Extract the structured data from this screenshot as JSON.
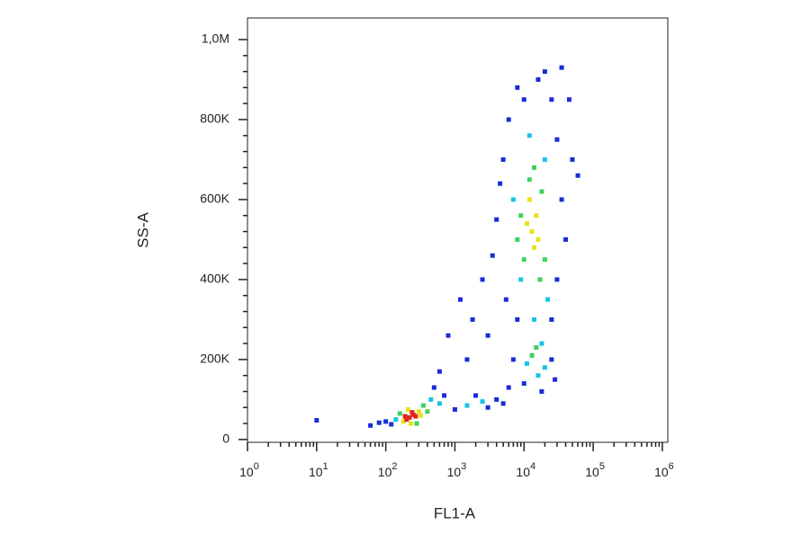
{
  "chart_data": {
    "type": "scatter",
    "x_label": "FL1-A",
    "y_label": "SS-A",
    "xscale": "log",
    "xlim": [
      1,
      1200000
    ],
    "ylim": [
      -7000,
      1054000
    ],
    "xticks": [
      {
        "value": 1,
        "label": "10",
        "sup": "0"
      },
      {
        "value": 10,
        "label": "10",
        "sup": "1"
      },
      {
        "value": 100,
        "label": "10",
        "sup": "2"
      },
      {
        "value": 1000,
        "label": "10",
        "sup": "3"
      },
      {
        "value": 10000,
        "label": "10",
        "sup": "4"
      },
      {
        "value": 100000,
        "label": "10",
        "sup": "5"
      },
      {
        "value": 1000000,
        "label": "10",
        "sup": "6"
      }
    ],
    "xminorticks": [
      2,
      3,
      4,
      5,
      6,
      7,
      8,
      9,
      20,
      30,
      40,
      50,
      60,
      70,
      80,
      90,
      200,
      300,
      400,
      500,
      600,
      700,
      800,
      900,
      2000,
      3000,
      4000,
      5000,
      6000,
      7000,
      8000,
      9000,
      20000,
      30000,
      40000,
      50000,
      60000,
      70000,
      80000,
      90000,
      200000,
      300000,
      400000,
      500000,
      600000,
      700000,
      800000,
      900000
    ],
    "yticks": [
      {
        "value": 0,
        "label": "0"
      },
      {
        "value": 200000,
        "label": "200K"
      },
      {
        "value": 400000,
        "label": "400K"
      },
      {
        "value": 600000,
        "label": "600K"
      },
      {
        "value": 800000,
        "label": "800K"
      },
      {
        "value": 1000000,
        "label": "1,0M"
      }
    ],
    "yminorticks": [
      40000,
      80000,
      120000,
      160000,
      240000,
      280000,
      320000,
      360000,
      440000,
      480000,
      520000,
      560000,
      640000,
      680000,
      720000,
      760000,
      840000,
      880000,
      920000,
      960000
    ],
    "series": [
      {
        "color": "#1a2cd8",
        "x": [
          100,
          120,
          80,
          500,
          700,
          1000,
          2000,
          3000,
          4000,
          5000,
          6000,
          5000,
          4000,
          6000,
          10000,
          16000,
          20000,
          25000,
          30000,
          35000,
          40000,
          30000,
          25000,
          8000,
          7000,
          25000,
          28000,
          10000,
          18000,
          3500,
          2500,
          1200,
          1500,
          800,
          10,
          60,
          4500,
          8000,
          35000,
          45000,
          50000,
          60000,
          3000,
          600,
          1800,
          5500
        ],
        "values": [
          45000,
          38000,
          42000,
          130000,
          110000,
          75000,
          110000,
          80000,
          100000,
          90000,
          130000,
          700000,
          550000,
          800000,
          850000,
          900000,
          920000,
          850000,
          750000,
          600000,
          500000,
          400000,
          300000,
          300000,
          200000,
          200000,
          150000,
          140000,
          120000,
          460000,
          400000,
          350000,
          200000,
          260000,
          48000,
          35000,
          640000,
          880000,
          930000,
          850000,
          700000,
          660000,
          260000,
          170000,
          300000,
          350000
        ]
      },
      {
        "color": "#19c3e6",
        "x": [
          450,
          140,
          600,
          1500,
          2500,
          20000,
          7000,
          9000,
          22000,
          14000,
          12000,
          18000,
          11000,
          20000,
          16000
        ],
        "values": [
          100000,
          50000,
          90000,
          85000,
          95000,
          700000,
          600000,
          400000,
          350000,
          300000,
          760000,
          240000,
          190000,
          180000,
          160000
        ]
      },
      {
        "color": "#3fd25a",
        "x": [
          350,
          160,
          280,
          400,
          9000,
          18000,
          12000,
          20000,
          10000,
          14000,
          17000,
          8000,
          15000,
          13000
        ],
        "values": [
          85000,
          65000,
          40000,
          70000,
          560000,
          620000,
          650000,
          450000,
          450000,
          680000,
          400000,
          500000,
          230000,
          210000
        ]
      },
      {
        "color": "#e6e21c",
        "x": [
          300,
          180,
          230,
          320,
          210,
          13000,
          15000,
          12000,
          16000,
          14000,
          11000
        ],
        "values": [
          70000,
          45000,
          40000,
          60000,
          75000,
          520000,
          560000,
          600000,
          500000,
          480000,
          540000
        ]
      },
      {
        "color": "#e0241a",
        "x": [
          220,
          250,
          200,
          270,
          240,
          190
        ],
        "values": [
          55000,
          62000,
          50000,
          58000,
          68000,
          58000
        ]
      }
    ]
  }
}
